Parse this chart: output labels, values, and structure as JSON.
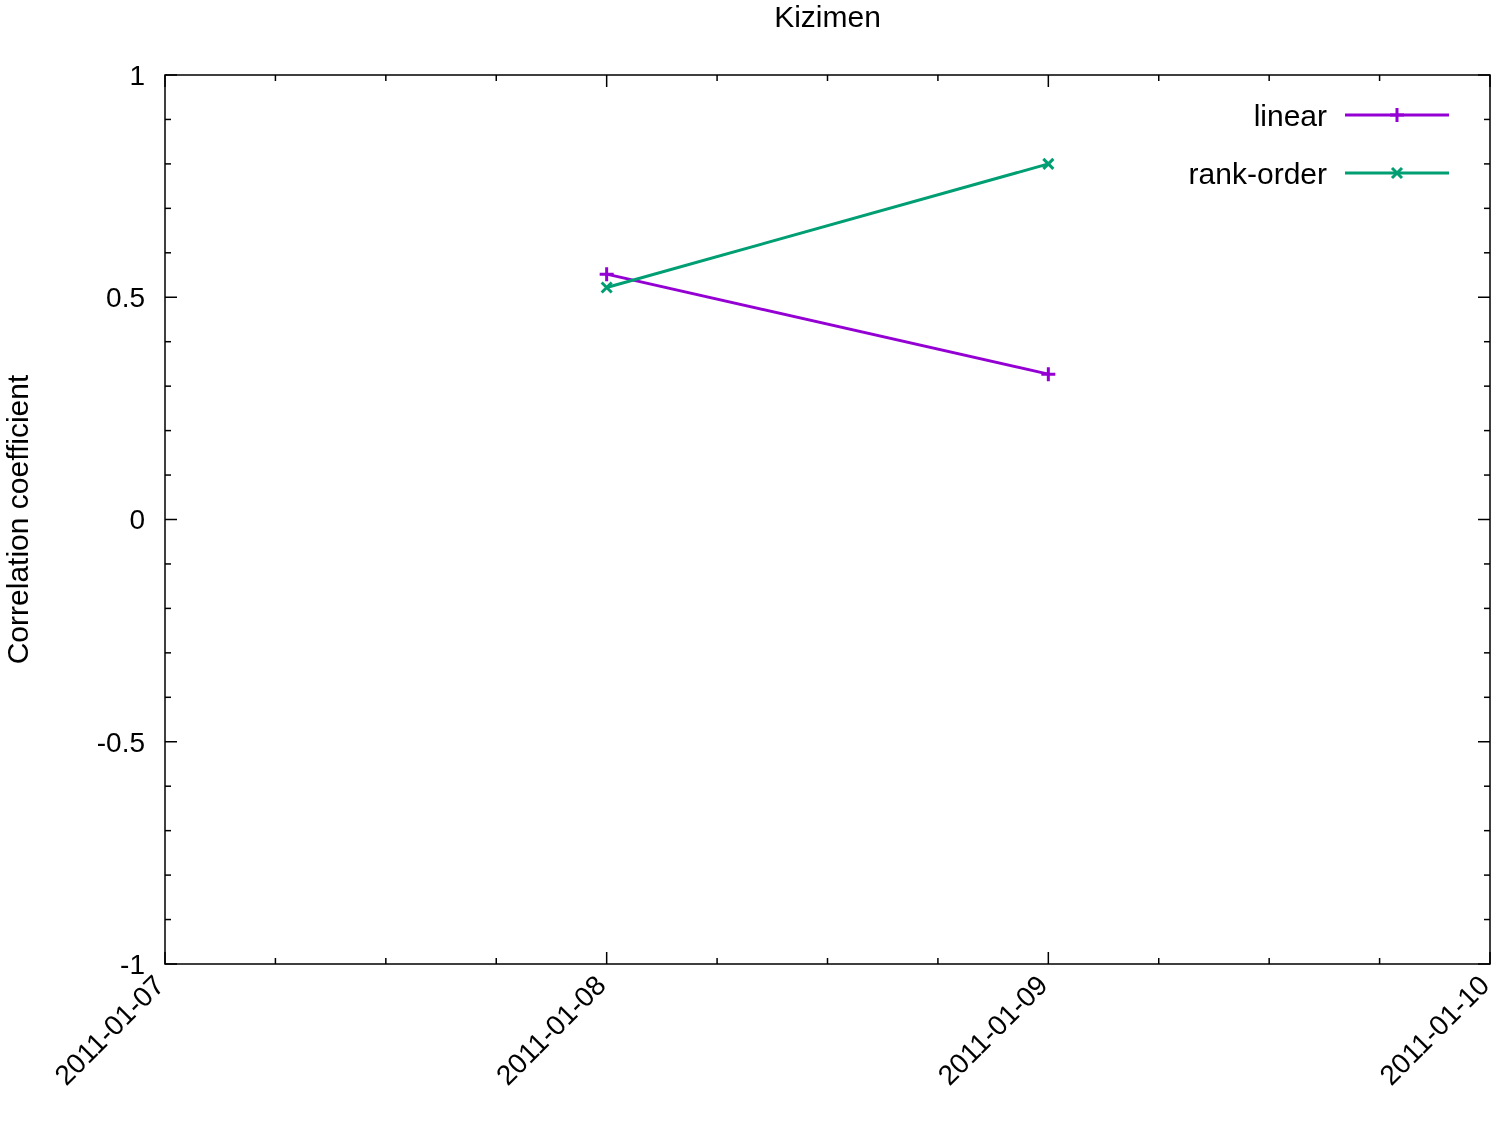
{
  "chart_data": {
    "type": "line",
    "title": "Kizimen",
    "ylabel": "Correlation coefficient",
    "x": [
      "2011-01-08",
      "2011-01-09"
    ],
    "series": [
      {
        "name": "linear",
        "color": "#9400d3",
        "values": [
          0.552,
          0.327
        ]
      },
      {
        "name": "rank-order",
        "color": "#009e73",
        "values": [
          0.522,
          0.8
        ]
      }
    ],
    "xlim": [
      "2011-01-07",
      "2011-01-10"
    ],
    "xticks": [
      "2011-01-07",
      {
        "value": "2011-01-07T06:00",
        "label": null
      },
      {
        "value": "2011-01-07T12:00",
        "label": null
      },
      {
        "value": "2011-01-07T18:00",
        "label": null
      },
      "2011-01-08",
      {
        "value": "2011-01-08T06:00",
        "label": null
      },
      {
        "value": "2011-01-08T12:00",
        "label": null
      },
      {
        "value": "2011-01-08T18:00",
        "label": null
      },
      "2011-01-09",
      {
        "value": "2011-01-09T06:00",
        "label": null
      },
      {
        "value": "2011-01-09T12:00",
        "label": null
      },
      {
        "value": "2011-01-09T18:00",
        "label": null
      },
      "2011-01-10"
    ],
    "ylim": [
      -1,
      1
    ],
    "yticks": [
      -1,
      {
        "value": -0.9,
        "label": null
      },
      {
        "value": -0.8,
        "label": null
      },
      {
        "value": -0.7,
        "label": null
      },
      {
        "value": -0.6,
        "label": null
      },
      -0.5,
      {
        "value": -0.4,
        "label": null
      },
      {
        "value": -0.3,
        "label": null
      },
      {
        "value": -0.2,
        "label": null
      },
      {
        "value": -0.1,
        "label": null
      },
      0,
      {
        "value": 0.1,
        "label": null
      },
      {
        "value": 0.2,
        "label": null
      },
      {
        "value": 0.3,
        "label": null
      },
      {
        "value": 0.4,
        "label": null
      },
      0.5,
      {
        "value": 0.6,
        "label": null
      },
      {
        "value": 0.7,
        "label": null
      },
      {
        "value": 0.8,
        "label": null
      },
      {
        "value": 0.9,
        "label": null
      },
      1
    ],
    "legend": "top right",
    "marker": "cross",
    "line_style": "solid",
    "grid": false
  }
}
